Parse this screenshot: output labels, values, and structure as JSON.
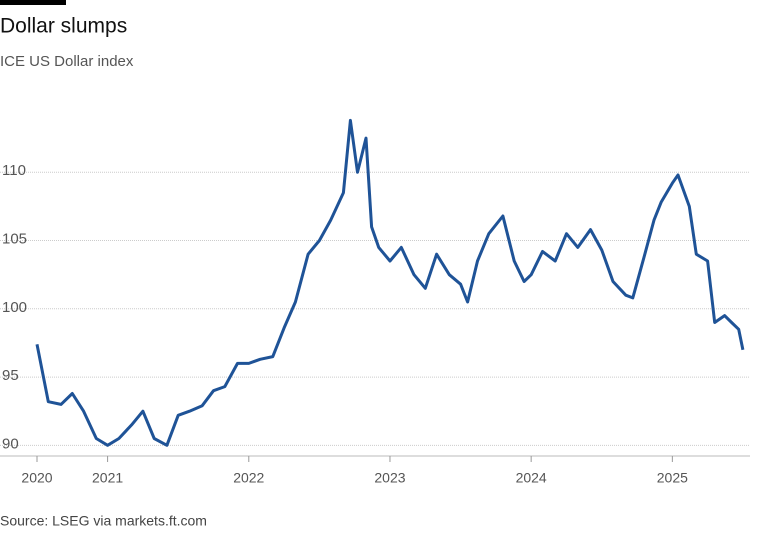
{
  "chart_data": {
    "type": "line",
    "title": "Dollar slumps",
    "subtitle": "ICE US Dollar index",
    "source": "Source: LSEG via markets.ft.com",
    "x": [
      2020.5,
      2020.58,
      2020.67,
      2020.75,
      2020.83,
      2020.92,
      2021.0,
      2021.08,
      2021.17,
      2021.25,
      2021.33,
      2021.42,
      2021.5,
      2021.58,
      2021.67,
      2021.75,
      2021.83,
      2021.92,
      2022.0,
      2022.08,
      2022.17,
      2022.25,
      2022.33,
      2022.42,
      2022.5,
      2022.58,
      2022.67,
      2022.72,
      2022.77,
      2022.83,
      2022.87,
      2022.92,
      2023.0,
      2023.08,
      2023.17,
      2023.25,
      2023.33,
      2023.42,
      2023.5,
      2023.55,
      2023.62,
      2023.7,
      2023.8,
      2023.88,
      2023.95,
      2024.0,
      2024.08,
      2024.17,
      2024.25,
      2024.33,
      2024.42,
      2024.5,
      2024.58,
      2024.67,
      2024.72,
      2024.8,
      2024.87,
      2024.92,
      2025.0,
      2025.04,
      2025.12,
      2025.17,
      2025.25,
      2025.3,
      2025.37,
      2025.42,
      2025.47,
      2025.5
    ],
    "series": [
      {
        "name": "ICE US Dollar index",
        "color": "#1f5397",
        "values": [
          97.4,
          93.2,
          93.0,
          93.8,
          92.5,
          90.5,
          90.0,
          90.5,
          91.5,
          92.5,
          90.5,
          90.0,
          92.2,
          92.5,
          92.9,
          94.0,
          94.3,
          96.0,
          96.0,
          96.3,
          96.5,
          98.6,
          100.5,
          104.0,
          105.0,
          106.5,
          108.5,
          113.8,
          110,
          112.5,
          106,
          104.5,
          103.5,
          104.5,
          102.5,
          101.5,
          104,
          102.5,
          101.8,
          100.5,
          103.5,
          105.5,
          106.8,
          103.5,
          102,
          102.5,
          104.2,
          103.5,
          105.5,
          104.5,
          105.8,
          104.3,
          102,
          101,
          100.8,
          103.8,
          106.5,
          107.8,
          109.2,
          109.8,
          107.5,
          104.0,
          103.5,
          99,
          99.5,
          99,
          98.5,
          97.0
        ]
      }
    ],
    "xlim": [
      2020.5,
      2025.55
    ],
    "xticks": [
      2020,
      2021,
      2022,
      2023,
      2024,
      2025
    ],
    "ylim": [
      89,
      115
    ],
    "yticks": [
      90,
      95,
      100,
      105,
      110
    ],
    "grid": true
  }
}
